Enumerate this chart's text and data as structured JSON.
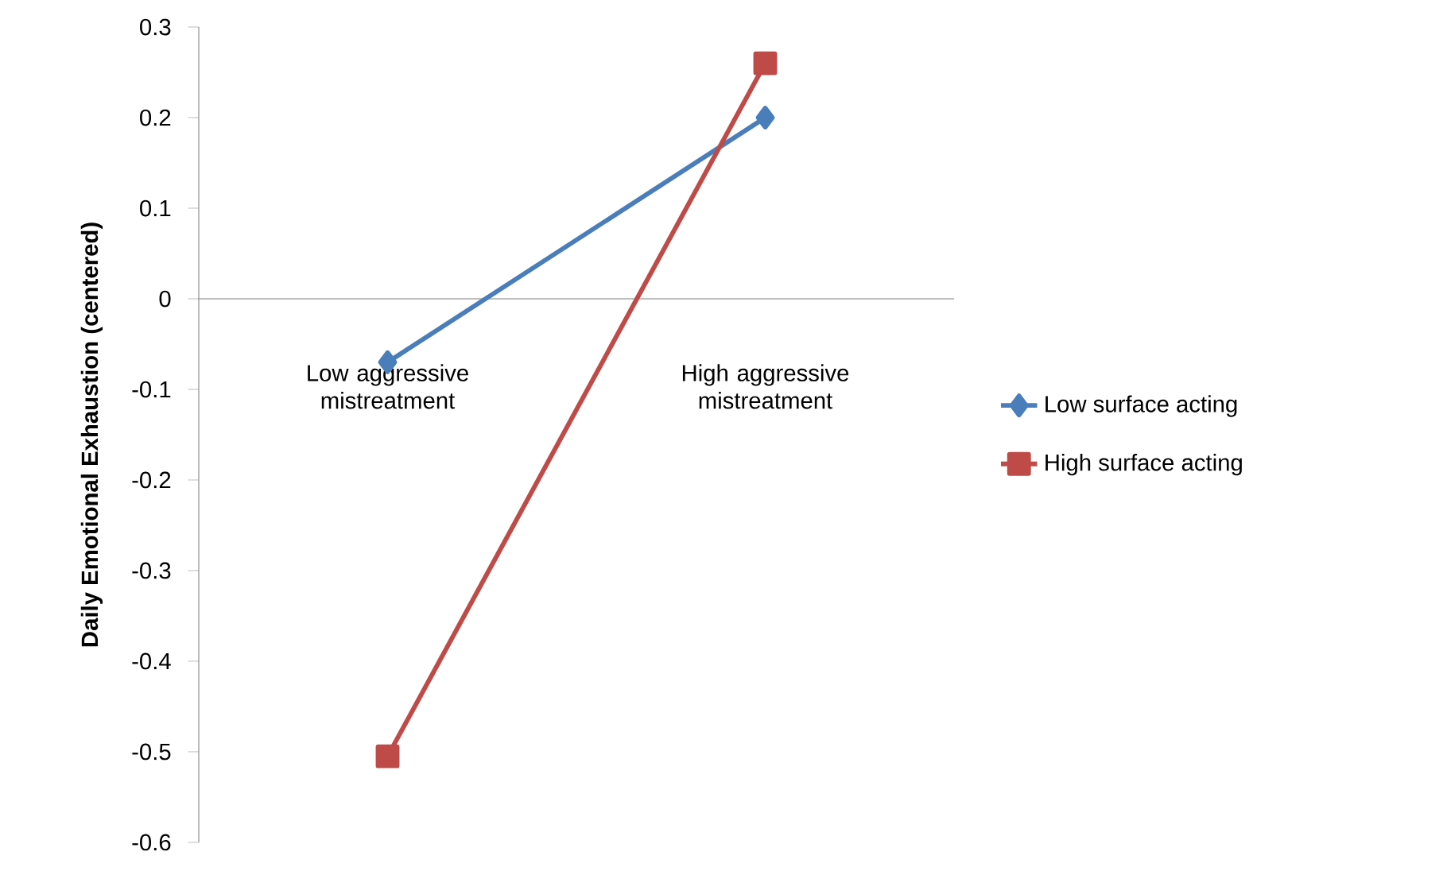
{
  "chart_data": {
    "type": "line",
    "ylabel": "Daily Emotional Exhaustion (centered)",
    "categories": [
      "Low aggressive mistreatment",
      "High aggressive mistreatment"
    ],
    "series": [
      {
        "name": "Low surface acting",
        "color": "#4a7ebb",
        "marker": "diamond",
        "values": [
          -0.07,
          0.2
        ]
      },
      {
        "name": "High surface acting",
        "color": "#be4b48",
        "marker": "square",
        "values": [
          -0.505,
          0.26
        ]
      }
    ],
    "ylim": [
      -0.6,
      0.3
    ],
    "yticks": [
      -0.6,
      -0.5,
      -0.4,
      -0.3,
      -0.2,
      -0.1,
      0,
      0.1,
      0.2,
      0.3
    ],
    "legend": "right"
  }
}
